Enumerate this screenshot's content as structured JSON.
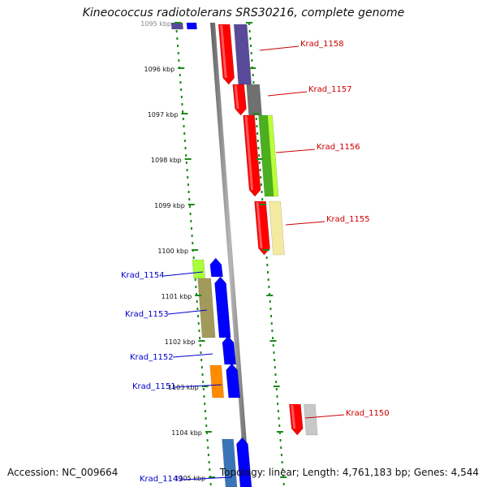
{
  "title": "Kineococcus radiotolerans SRS30216, complete genome",
  "footer": {
    "accession": "Accession: NC_009664",
    "summary": "Topology: linear; Length: 4,761,183 bp; Genes: 4,544"
  },
  "scale_unit": "kbp",
  "ticks": [
    "1095 kbp",
    "1096 kbp",
    "1097 kbp",
    "1098 kbp",
    "1099 kbp",
    "1100 kbp",
    "1101 kbp",
    "1102 kbp",
    "1103 kbp",
    "1104 kbp",
    "1105 kbp"
  ],
  "gene_labels": [
    {
      "name": "Krad_1158",
      "strand": "plus"
    },
    {
      "name": "Krad_1157",
      "strand": "plus"
    },
    {
      "name": "Krad_1156",
      "strand": "plus"
    },
    {
      "name": "Krad_1155",
      "strand": "plus"
    },
    {
      "name": "Krad_1154",
      "strand": "minus"
    },
    {
      "name": "Krad_1153",
      "strand": "minus"
    },
    {
      "name": "Krad_1152",
      "strand": "minus"
    },
    {
      "name": "Krad_1151",
      "strand": "minus"
    },
    {
      "name": "Krad_1150",
      "strand": "plus"
    },
    {
      "name": "Krad_1149",
      "strand": "minus"
    }
  ],
  "colors": {
    "plus_label": "#cc0000",
    "minus_label": "#0000cc",
    "plus_strand": "#ff0000",
    "minus_strand": "#0000ff",
    "backbone": "#808080",
    "ruler_dots": "#1a8a1a"
  }
}
